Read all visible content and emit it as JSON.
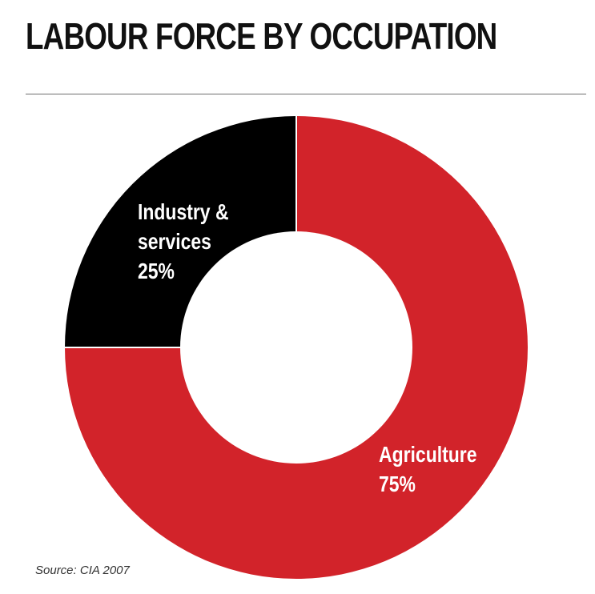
{
  "title": "LABOUR FORCE BY OCCUPATION",
  "source": "Source: CIA 2007",
  "colors": {
    "agriculture": "#d2232a",
    "industry": "#000000",
    "hole": "#ffffff",
    "divider": "#ffffff"
  },
  "chart_data": {
    "type": "pie",
    "donut": true,
    "title": "LABOUR FORCE BY OCCUPATION",
    "slices": [
      {
        "label_lines": [
          "Agriculture",
          "75%"
        ],
        "category": "Agriculture",
        "value": 75,
        "color": "#d2232a"
      },
      {
        "label_lines": [
          "Industry &",
          "services",
          "25%"
        ],
        "category": "Industry & services",
        "value": 25,
        "color": "#000000"
      }
    ],
    "source": "Source: CIA 2007"
  }
}
